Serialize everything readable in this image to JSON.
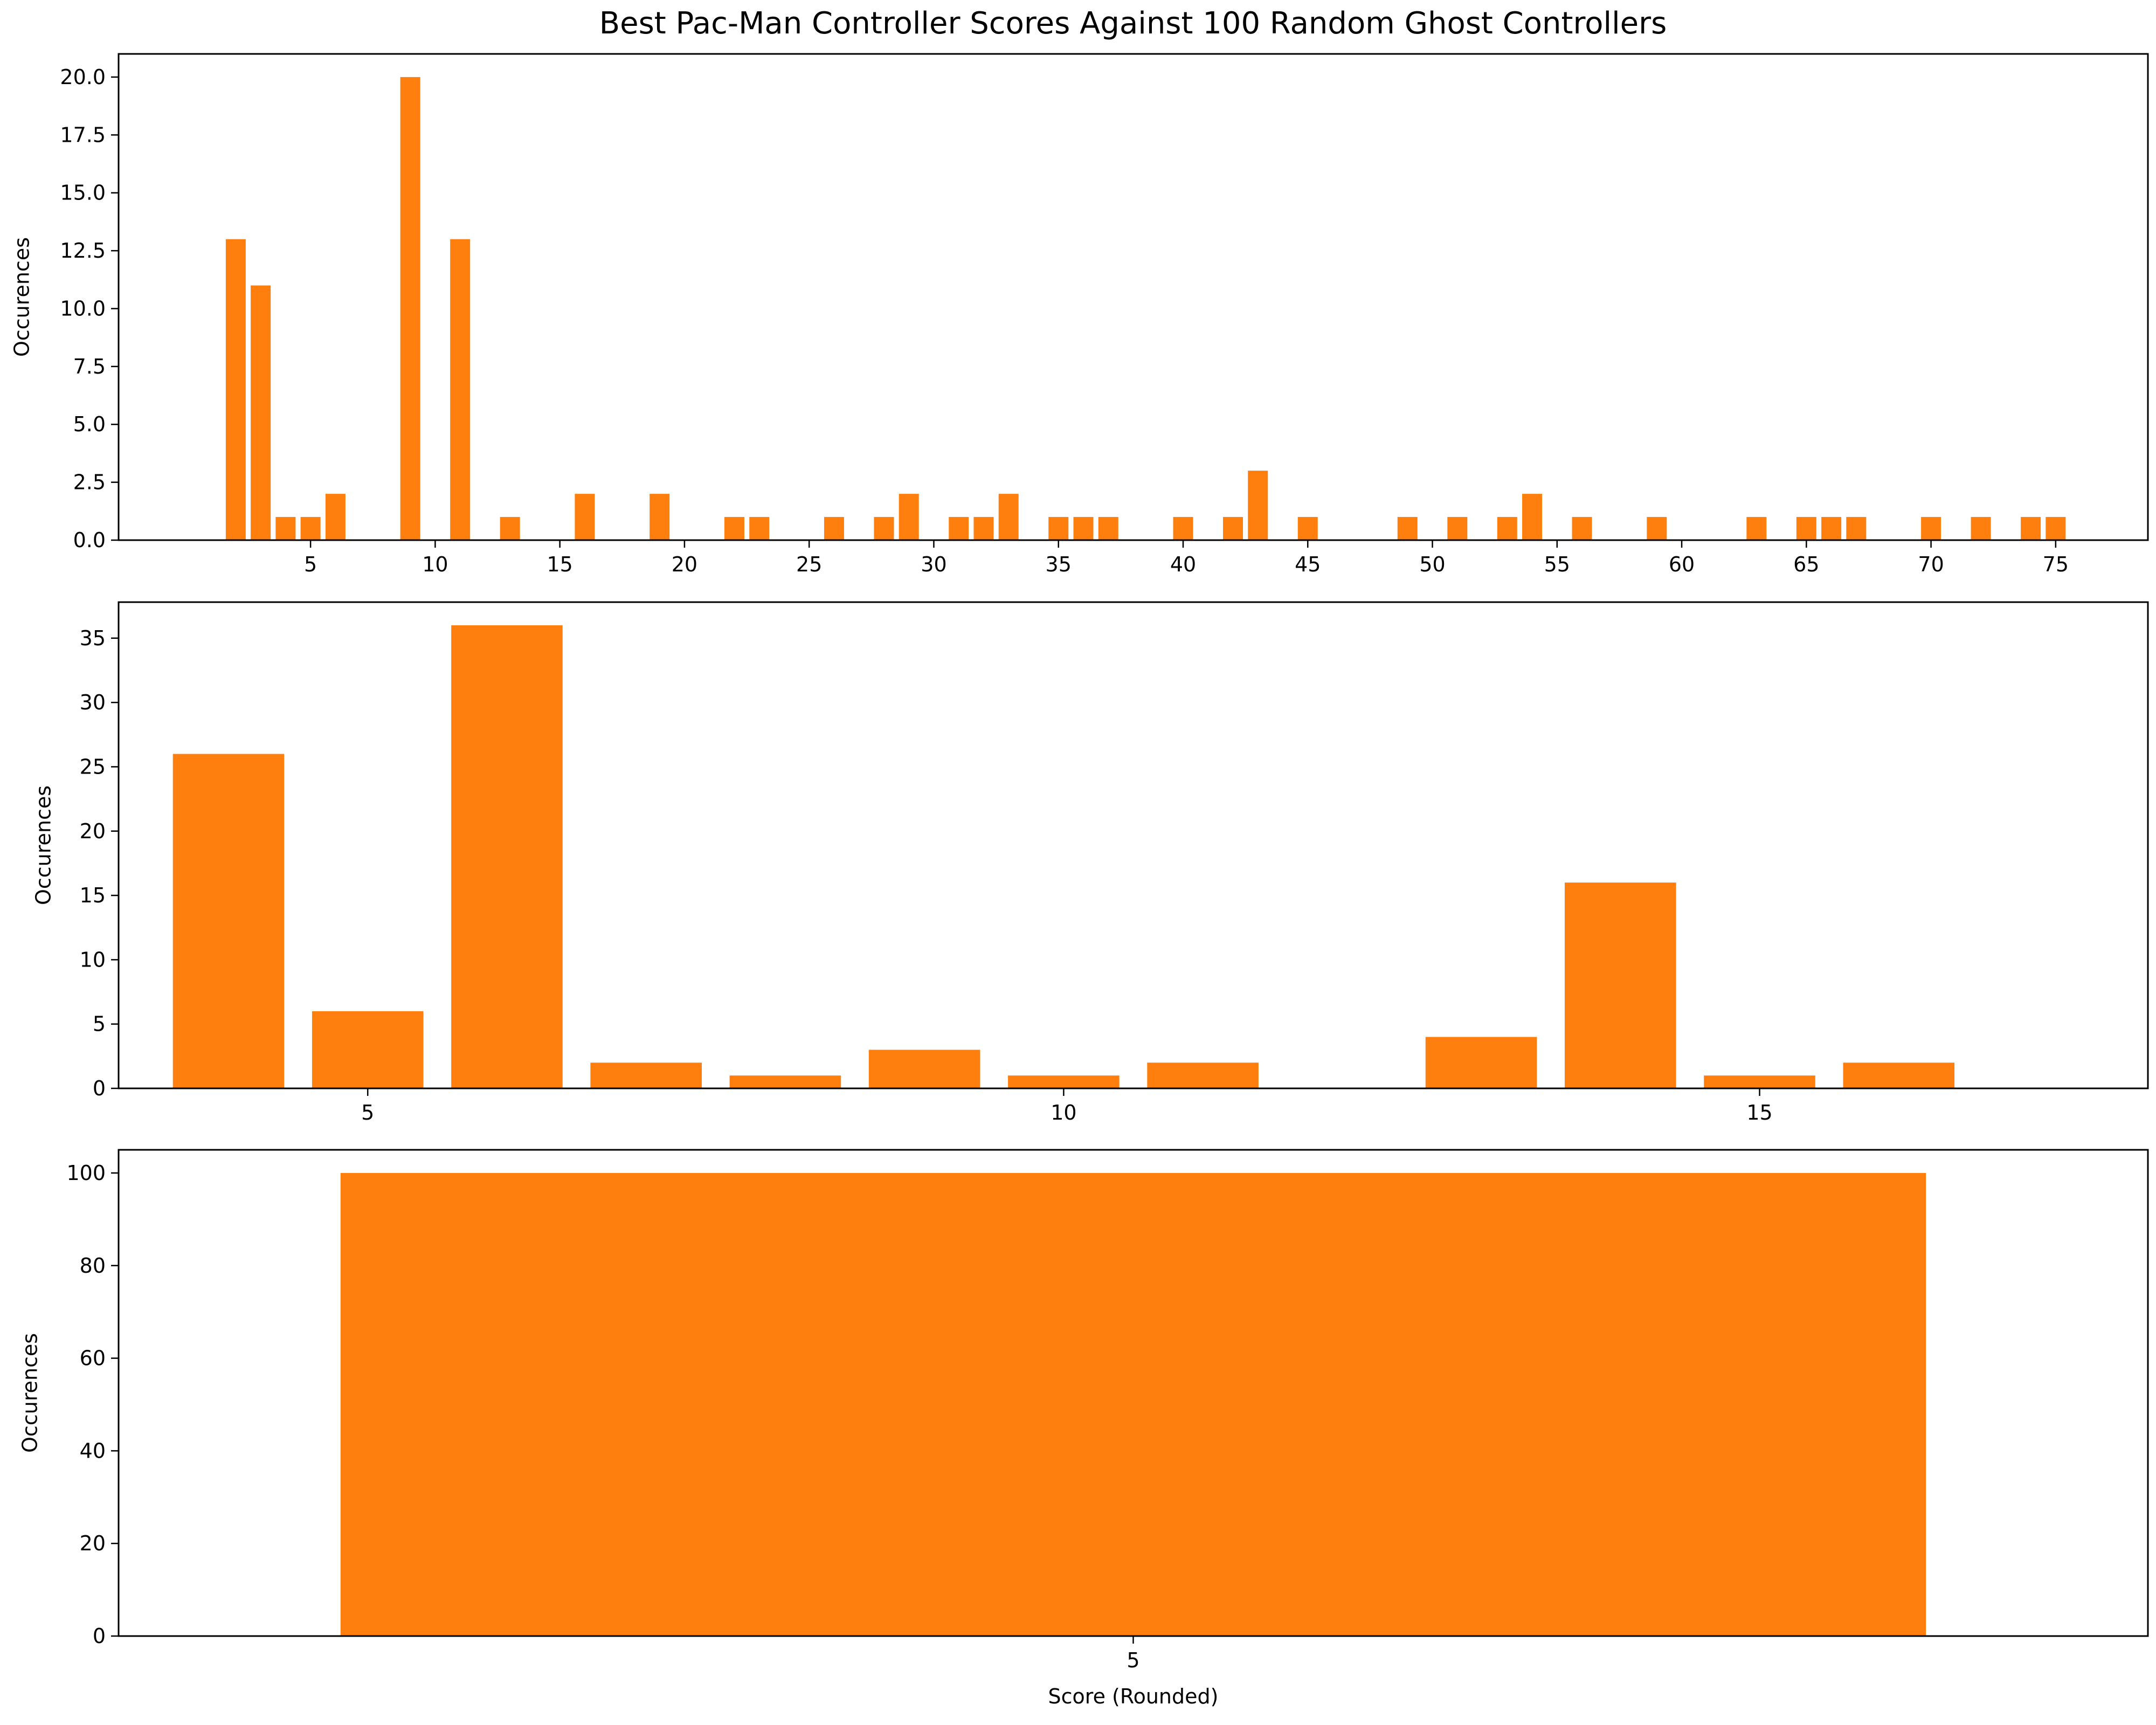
{
  "figure": {
    "title": "Best Pac-Man Controller Scores Against 100 Random Ghost Controllers",
    "bar_color": "#ff7f0e"
  },
  "chart_data": [
    {
      "type": "bar",
      "title": "",
      "xlabel": "",
      "ylabel": "Occurences",
      "xlim": [
        -2.7,
        78.7
      ],
      "ylim": [
        0,
        21
      ],
      "xticks": [
        5,
        10,
        15,
        20,
        25,
        30,
        35,
        40,
        45,
        50,
        55,
        60,
        65,
        70,
        75
      ],
      "yticks": [
        0,
        2.5,
        5,
        7.5,
        10,
        12.5,
        15,
        17.5,
        20
      ],
      "ytick_labels": [
        "0.0",
        "2.5",
        "5.0",
        "7.5",
        "10.0",
        "12.5",
        "15.0",
        "17.5",
        "20.0"
      ],
      "bar_width": 0.8,
      "grid": false,
      "x": [
        2,
        3,
        4,
        5,
        6,
        9,
        11,
        13,
        16,
        19,
        22,
        23,
        26,
        28,
        29,
        31,
        32,
        33,
        35,
        36,
        37,
        40,
        42,
        43,
        45,
        49,
        51,
        53,
        54,
        56,
        59,
        63,
        65,
        66,
        67,
        70,
        72,
        74,
        75
      ],
      "values": [
        13,
        11,
        1,
        1,
        2,
        20,
        13,
        1,
        2,
        2,
        1,
        1,
        1,
        1,
        2,
        1,
        1,
        2,
        1,
        1,
        1,
        1,
        1,
        3,
        1,
        1,
        1,
        1,
        2,
        1,
        1,
        1,
        1,
        1,
        1,
        1,
        1,
        1,
        1
      ]
    },
    {
      "type": "bar",
      "title": "",
      "xlabel": "",
      "ylabel": "Occurences",
      "xlim": [
        3.21,
        17.79
      ],
      "ylim": [
        0,
        37.8
      ],
      "xticks": [
        5,
        10,
        15
      ],
      "yticks": [
        0,
        5,
        10,
        15,
        20,
        25,
        30,
        35
      ],
      "ytick_labels": [
        "0",
        "5",
        "10",
        "15",
        "20",
        "25",
        "30",
        "35"
      ],
      "bar_width": 0.8,
      "grid": false,
      "x": [
        4,
        5,
        6,
        7,
        8,
        9,
        10,
        11,
        13,
        14,
        15,
        16
      ],
      "values": [
        26,
        6,
        36,
        2,
        1,
        3,
        1,
        2,
        4,
        16,
        1,
        2
      ]
    },
    {
      "type": "bar",
      "title": "",
      "xlabel": "Score (Rounded)",
      "ylabel": "Occurences",
      "xlim": [
        4.36,
        5.64
      ],
      "ylim": [
        0,
        105
      ],
      "xticks": [
        5
      ],
      "yticks": [
        0,
        20,
        40,
        60,
        80,
        100
      ],
      "ytick_labels": [
        "0",
        "20",
        "40",
        "60",
        "80",
        "100"
      ],
      "bar_width": 1.0,
      "grid": false,
      "x": [
        5
      ],
      "values": [
        100
      ]
    }
  ]
}
